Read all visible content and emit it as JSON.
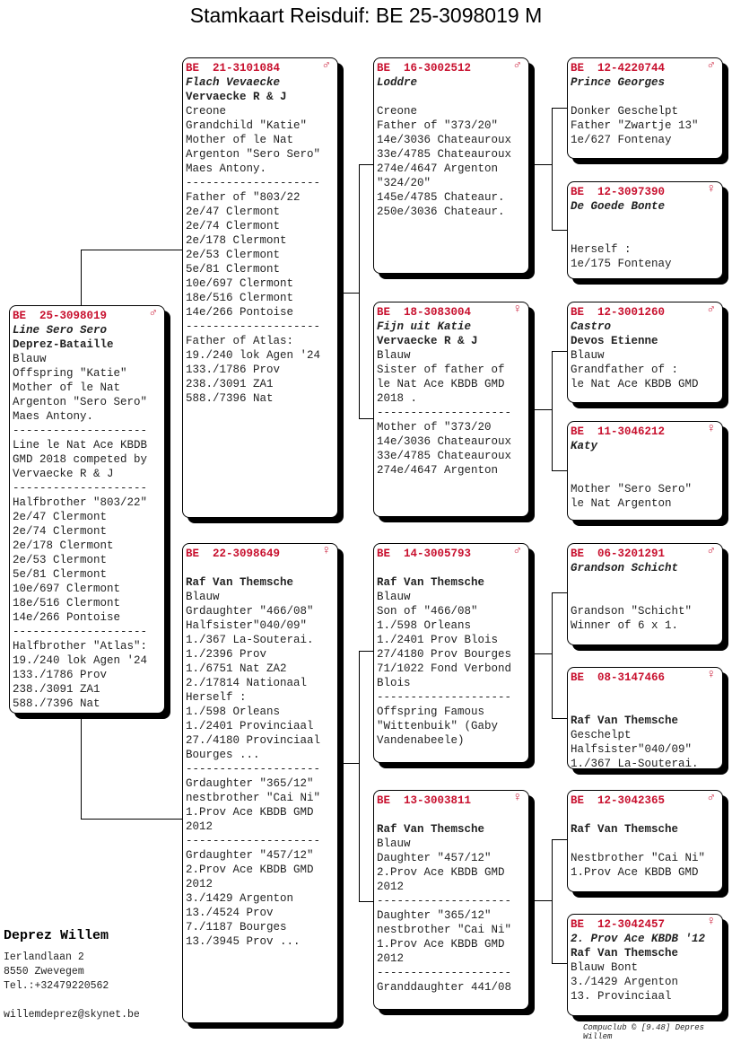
{
  "title": "Stamkaart Reisduif: BE  25-3098019 M",
  "colors": {
    "ring": "#c8102e"
  },
  "cards": [
    {
      "id": "main",
      "ring": "BE  25-3098019",
      "sex": "♂",
      "lines": [
        [
          "i",
          "Line Sero Sero"
        ],
        [
          "b",
          "Deprez-Bataille"
        ],
        [
          "",
          "Blauw"
        ],
        [
          "",
          "Offspring \"Katie\""
        ],
        [
          "",
          "Mother of le Nat"
        ],
        [
          "",
          "Argenton \"Sero Sero\""
        ],
        [
          "",
          "Maes Antony."
        ],
        [
          "",
          "--------------------"
        ],
        [
          "",
          "Line le Nat Ace KBDB"
        ],
        [
          "",
          "GMD 2018 competed by"
        ],
        [
          "",
          "Vervaecke R & J"
        ],
        [
          "",
          "--------------------"
        ],
        [
          "",
          "Halfbrother \"803/22\""
        ],
        [
          "",
          "2e/47 Clermont"
        ],
        [
          "",
          "2e/74 Clermont"
        ],
        [
          "",
          "2e/178 Clermont"
        ],
        [
          "",
          "2e/53 Clermont"
        ],
        [
          "",
          "5e/81 Clermont"
        ],
        [
          "",
          "10e/697 Clermont"
        ],
        [
          "",
          "18e/516 Clermont"
        ],
        [
          "",
          "14e/266 Pontoise"
        ],
        [
          "",
          "--------------------"
        ],
        [
          "",
          "Halfbrother \"Atlas\":"
        ],
        [
          "",
          "19./240 lok Agen '24"
        ],
        [
          "",
          "133./1786 Prov"
        ],
        [
          "",
          "238./3091 ZA1"
        ],
        [
          "",
          "588./7396 Nat"
        ]
      ]
    },
    {
      "id": "father",
      "ring": "BE  21-3101084",
      "sex": "♂",
      "lines": [
        [
          "i",
          "Flach Vevaecke"
        ],
        [
          "b",
          "Vervaecke R & J"
        ],
        [
          "",
          "Creone"
        ],
        [
          "",
          "Grandchild \"Katie\""
        ],
        [
          "",
          "Mother of le Nat"
        ],
        [
          "",
          "Argenton \"Sero Sero\""
        ],
        [
          "",
          "Maes Antony."
        ],
        [
          "",
          "--------------------"
        ],
        [
          "",
          "Father of \"803/22"
        ],
        [
          "",
          "2e/47 Clermont"
        ],
        [
          "",
          "2e/74 Clermont"
        ],
        [
          "",
          "2e/178 Clermont"
        ],
        [
          "",
          "2e/53 Clermont"
        ],
        [
          "",
          "5e/81 Clermont"
        ],
        [
          "",
          "10e/697 Clermont"
        ],
        [
          "",
          "18e/516 Clermont"
        ],
        [
          "",
          "14e/266 Pontoise"
        ],
        [
          "",
          "--------------------"
        ],
        [
          "",
          "Father of Atlas:"
        ],
        [
          "",
          "19./240 lok Agen '24"
        ],
        [
          "",
          "133./1786 Prov"
        ],
        [
          "",
          "238./3091 ZA1"
        ],
        [
          "",
          "588./7396 Nat"
        ]
      ]
    },
    {
      "id": "mother",
      "ring": "BE  22-3098649",
      "sex": "♀",
      "lines": [
        [
          "i",
          ""
        ],
        [
          "b",
          "Raf Van Themsche"
        ],
        [
          "",
          "Blauw"
        ],
        [
          "",
          "Grdaughter \"466/08\""
        ],
        [
          "",
          "Halfsister\"040/09\""
        ],
        [
          "",
          "1./367 La-Souterai."
        ],
        [
          "",
          "1./2396 Prov"
        ],
        [
          "",
          "1./6751 Nat ZA2"
        ],
        [
          "",
          "2./17814 Nationaal"
        ],
        [
          "",
          "Herself :"
        ],
        [
          "",
          "1./598 Orleans"
        ],
        [
          "",
          "1./2401 Provinciaal"
        ],
        [
          "",
          "27./4180 Provinciaal"
        ],
        [
          "",
          "Bourges ..."
        ],
        [
          "",
          "--------------------"
        ],
        [
          "",
          "Grdaughter \"365/12\""
        ],
        [
          "",
          "nestbrother \"Cai Ni\""
        ],
        [
          "",
          "1.Prov Ace KBDB GMD"
        ],
        [
          "",
          "2012"
        ],
        [
          "",
          "--------------------"
        ],
        [
          "",
          "Grdaughter \"457/12\""
        ],
        [
          "",
          "2.Prov Ace KBDB GMD"
        ],
        [
          "",
          "2012"
        ],
        [
          "",
          "3./1429 Argenton"
        ],
        [
          "",
          "13./4524 Prov"
        ],
        [
          "",
          "7./1187 Bourges"
        ],
        [
          "",
          "13./3945 Prov ..."
        ]
      ]
    },
    {
      "id": "ff",
      "ring": "BE  16-3002512",
      "sex": "♂",
      "lines": [
        [
          "i",
          "Loddre"
        ],
        [
          "",
          ""
        ],
        [
          "",
          "Creone"
        ],
        [
          "",
          "Father of \"373/20\""
        ],
        [
          "",
          "14e/3036 Chateauroux"
        ],
        [
          "",
          "33e/4785 Chateauroux"
        ],
        [
          "",
          "274e/4647 Argenton"
        ],
        [
          "",
          "\"324/20\""
        ],
        [
          "",
          "145e/4785 Chateaur."
        ],
        [
          "",
          "250e/3036 Chateaur."
        ]
      ]
    },
    {
      "id": "fm",
      "ring": "BE  18-3083004",
      "sex": "♀",
      "lines": [
        [
          "i",
          "Fijn uit Katie"
        ],
        [
          "b",
          "Vervaecke R & J"
        ],
        [
          "",
          "Blauw"
        ],
        [
          "",
          "Sister of father of"
        ],
        [
          "",
          "le Nat Ace KBDB GMD"
        ],
        [
          "",
          "2018 ."
        ],
        [
          "",
          "--------------------"
        ],
        [
          "",
          "Mother of \"373/20"
        ],
        [
          "",
          "14e/3036 Chateauroux"
        ],
        [
          "",
          "33e/4785 Chateauroux"
        ],
        [
          "",
          "274e/4647 Argenton"
        ]
      ]
    },
    {
      "id": "mf",
      "ring": "BE  14-3005793",
      "sex": "♂",
      "lines": [
        [
          "i",
          ""
        ],
        [
          "b",
          "Raf Van Themsche"
        ],
        [
          "",
          "Blauw"
        ],
        [
          "",
          "Son of \"466/08\""
        ],
        [
          "",
          "1./598 Orleans"
        ],
        [
          "",
          "1./2401 Prov Blois"
        ],
        [
          "",
          "27/4180 Prov Bourges"
        ],
        [
          "",
          "71/1022 Fond Verbond"
        ],
        [
          "",
          "Blois"
        ],
        [
          "",
          "--------------------"
        ],
        [
          "",
          "Offspring Famous"
        ],
        [
          "",
          "\"Wittenbuik\" (Gaby"
        ],
        [
          "",
          "Vandenabeele)"
        ]
      ]
    },
    {
      "id": "mm",
      "ring": "BE  13-3003811",
      "sex": "♀",
      "lines": [
        [
          "i",
          ""
        ],
        [
          "b",
          "Raf Van Themsche"
        ],
        [
          "",
          "Blauw"
        ],
        [
          "",
          "Daughter \"457/12\""
        ],
        [
          "",
          "2.Prov Ace KBDB GMD"
        ],
        [
          "",
          "2012"
        ],
        [
          "",
          "--------------------"
        ],
        [
          "",
          "Daughter \"365/12\""
        ],
        [
          "",
          "nestbrother \"Cai Ni\""
        ],
        [
          "",
          "1.Prov Ace KBDB GMD"
        ],
        [
          "",
          "2012"
        ],
        [
          "",
          "--------------------"
        ],
        [
          "",
          "Granddaughter 441/08"
        ]
      ]
    },
    {
      "id": "fff",
      "ring": "BE  12-4220744",
      "sex": "♂",
      "lines": [
        [
          "i",
          "Prince Georges"
        ],
        [
          "",
          ""
        ],
        [
          "",
          "Donker Geschelpt"
        ],
        [
          "",
          "Father \"Zwartje 13\""
        ],
        [
          "",
          "1e/627 Fontenay"
        ]
      ]
    },
    {
      "id": "ffm",
      "ring": "BE  12-3097390",
      "sex": "♀",
      "lines": [
        [
          "i",
          "De Goede Bonte"
        ],
        [
          "",
          ""
        ],
        [
          "",
          ""
        ],
        [
          "",
          "Herself :"
        ],
        [
          "",
          "1e/175 Fontenay"
        ]
      ]
    },
    {
      "id": "fmf",
      "ring": "BE  12-3001260",
      "sex": "♂",
      "lines": [
        [
          "i",
          "Castro"
        ],
        [
          "b",
          "Devos Etienne"
        ],
        [
          "",
          "Blauw"
        ],
        [
          "",
          "Grandfather of :"
        ],
        [
          "",
          "le Nat Ace KBDB GMD"
        ]
      ]
    },
    {
      "id": "fmm",
      "ring": "BE  11-3046212",
      "sex": "♀",
      "lines": [
        [
          "i",
          "Katy"
        ],
        [
          "",
          ""
        ],
        [
          "",
          ""
        ],
        [
          "",
          "Mother \"Sero Sero\""
        ],
        [
          "",
          "le Nat Argenton"
        ]
      ]
    },
    {
      "id": "mff",
      "ring": "BE  06-3201291",
      "sex": "♂",
      "lines": [
        [
          "i",
          "Grandson Schicht"
        ],
        [
          "",
          ""
        ],
        [
          "",
          ""
        ],
        [
          "",
          "Grandson \"Schicht\""
        ],
        [
          "",
          "Winner of 6 x 1."
        ]
      ]
    },
    {
      "id": "mfm",
      "ring": "BE  08-3147466",
      "sex": "♀",
      "lines": [
        [
          "i",
          ""
        ],
        [
          "",
          ""
        ],
        [
          "b",
          "Raf Van Themsche"
        ],
        [
          "",
          "Geschelpt"
        ],
        [
          "",
          "Halfsister\"040/09\""
        ],
        [
          "",
          "1./367 La-Souterai."
        ]
      ]
    },
    {
      "id": "mmf",
      "ring": "BE  12-3042365",
      "sex": "♂",
      "lines": [
        [
          "i",
          ""
        ],
        [
          "b",
          "Raf Van Themsche"
        ],
        [
          "",
          ""
        ],
        [
          "",
          "Nestbrother \"Cai Ni\""
        ],
        [
          "",
          "1.Prov Ace KBDB GMD"
        ]
      ]
    },
    {
      "id": "mmm",
      "ring": "BE  12-3042457",
      "sex": "♀",
      "lines": [
        [
          "i",
          "2. Prov Ace KBDB '12"
        ],
        [
          "b",
          "Raf Van Themsche"
        ],
        [
          "",
          "Blauw Bont"
        ],
        [
          "",
          "3./1429 Argenton"
        ],
        [
          "",
          "13. Provinciaal"
        ]
      ]
    }
  ],
  "owner": {
    "name": "Deprez Willem",
    "street": "Ierlandlaan 2",
    "city": "8550  Zwevegem",
    "phone": "Tel.:+32479220562",
    "email": "willemdeprez@skynet.be"
  },
  "footer": "Compuclub © [9.48]  Depres Willem"
}
